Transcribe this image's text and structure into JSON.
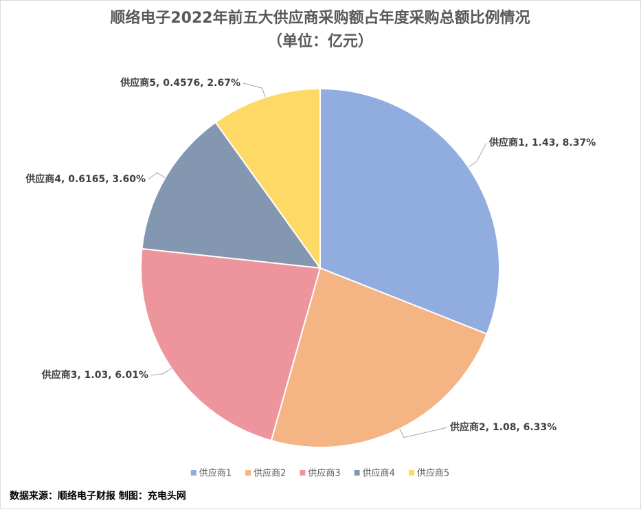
{
  "chart_data": {
    "type": "pie",
    "title": "顺络电子2022年前五大供应商采购额占年度采购总额比例情况",
    "subtitle": "（单位：亿元）",
    "categories": [
      "供应商1",
      "供应商2",
      "供应商3",
      "供应商4",
      "供应商5"
    ],
    "values": [
      1.43,
      1.08,
      1.03,
      0.6165,
      0.4576
    ],
    "value_labels": [
      "供应商1, 1.43, 8.37%",
      "供应商2, 1.08, 6.33%",
      "供应商3, 1.03, 6.01%",
      "供应商4, 0.6165, 3.60%",
      "供应商5, 0.4576, 2.67%"
    ],
    "colors": [
      "#91acdf",
      "#f4b484",
      "#ee949c",
      "#8497b0",
      "#ffd966"
    ],
    "legend": "bottom",
    "footnote": "数据来源：顺络电子财报 制图：充电头网"
  }
}
